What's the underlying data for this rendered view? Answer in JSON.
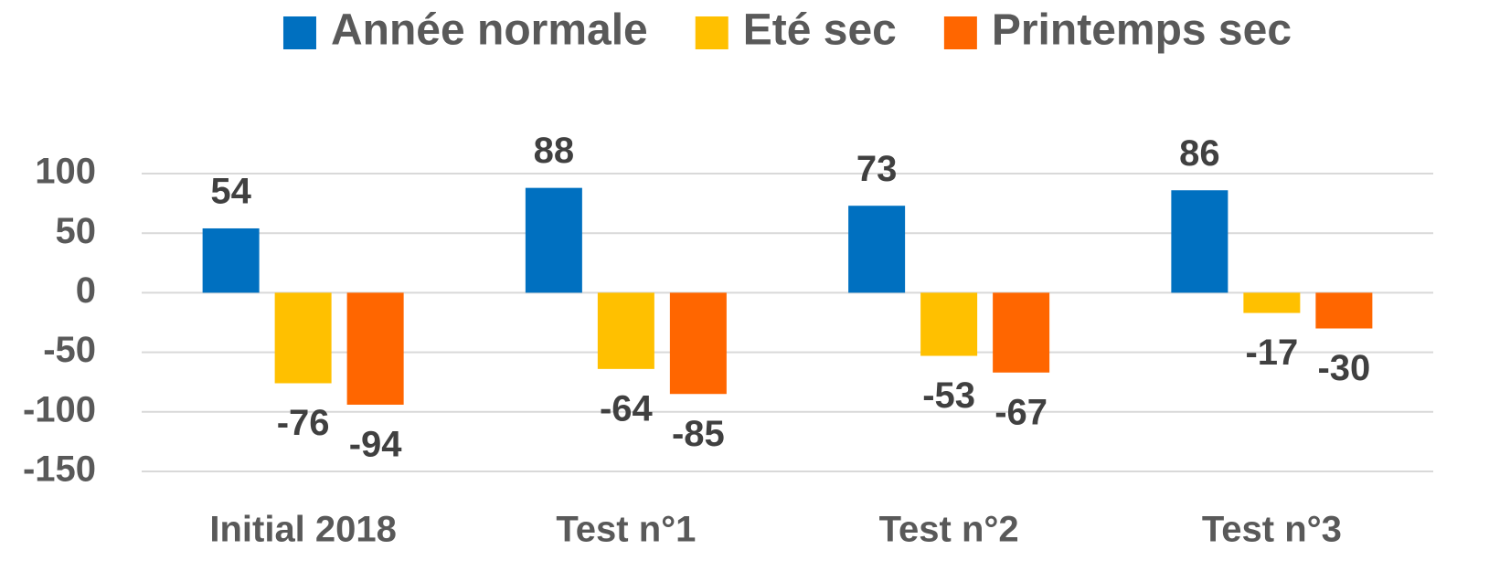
{
  "chart_data": {
    "type": "bar",
    "categories": [
      "Initial 2018",
      "Test n°1",
      "Test n°2",
      "Test n°3"
    ],
    "series": [
      {
        "name": "Année normale",
        "color": "#0070C0",
        "values": [
          54,
          88,
          73,
          86
        ]
      },
      {
        "name": "Eté sec",
        "color": "#FFC000",
        "values": [
          -76,
          -64,
          -53,
          -17
        ]
      },
      {
        "name": "Printemps sec",
        "color": "#FF6600",
        "values": [
          -94,
          -85,
          -67,
          -30
        ]
      }
    ],
    "ylim": [
      -150,
      100
    ],
    "yticks": [
      -150,
      -100,
      -50,
      0,
      50,
      100
    ],
    "grid": true,
    "legend": "top"
  }
}
